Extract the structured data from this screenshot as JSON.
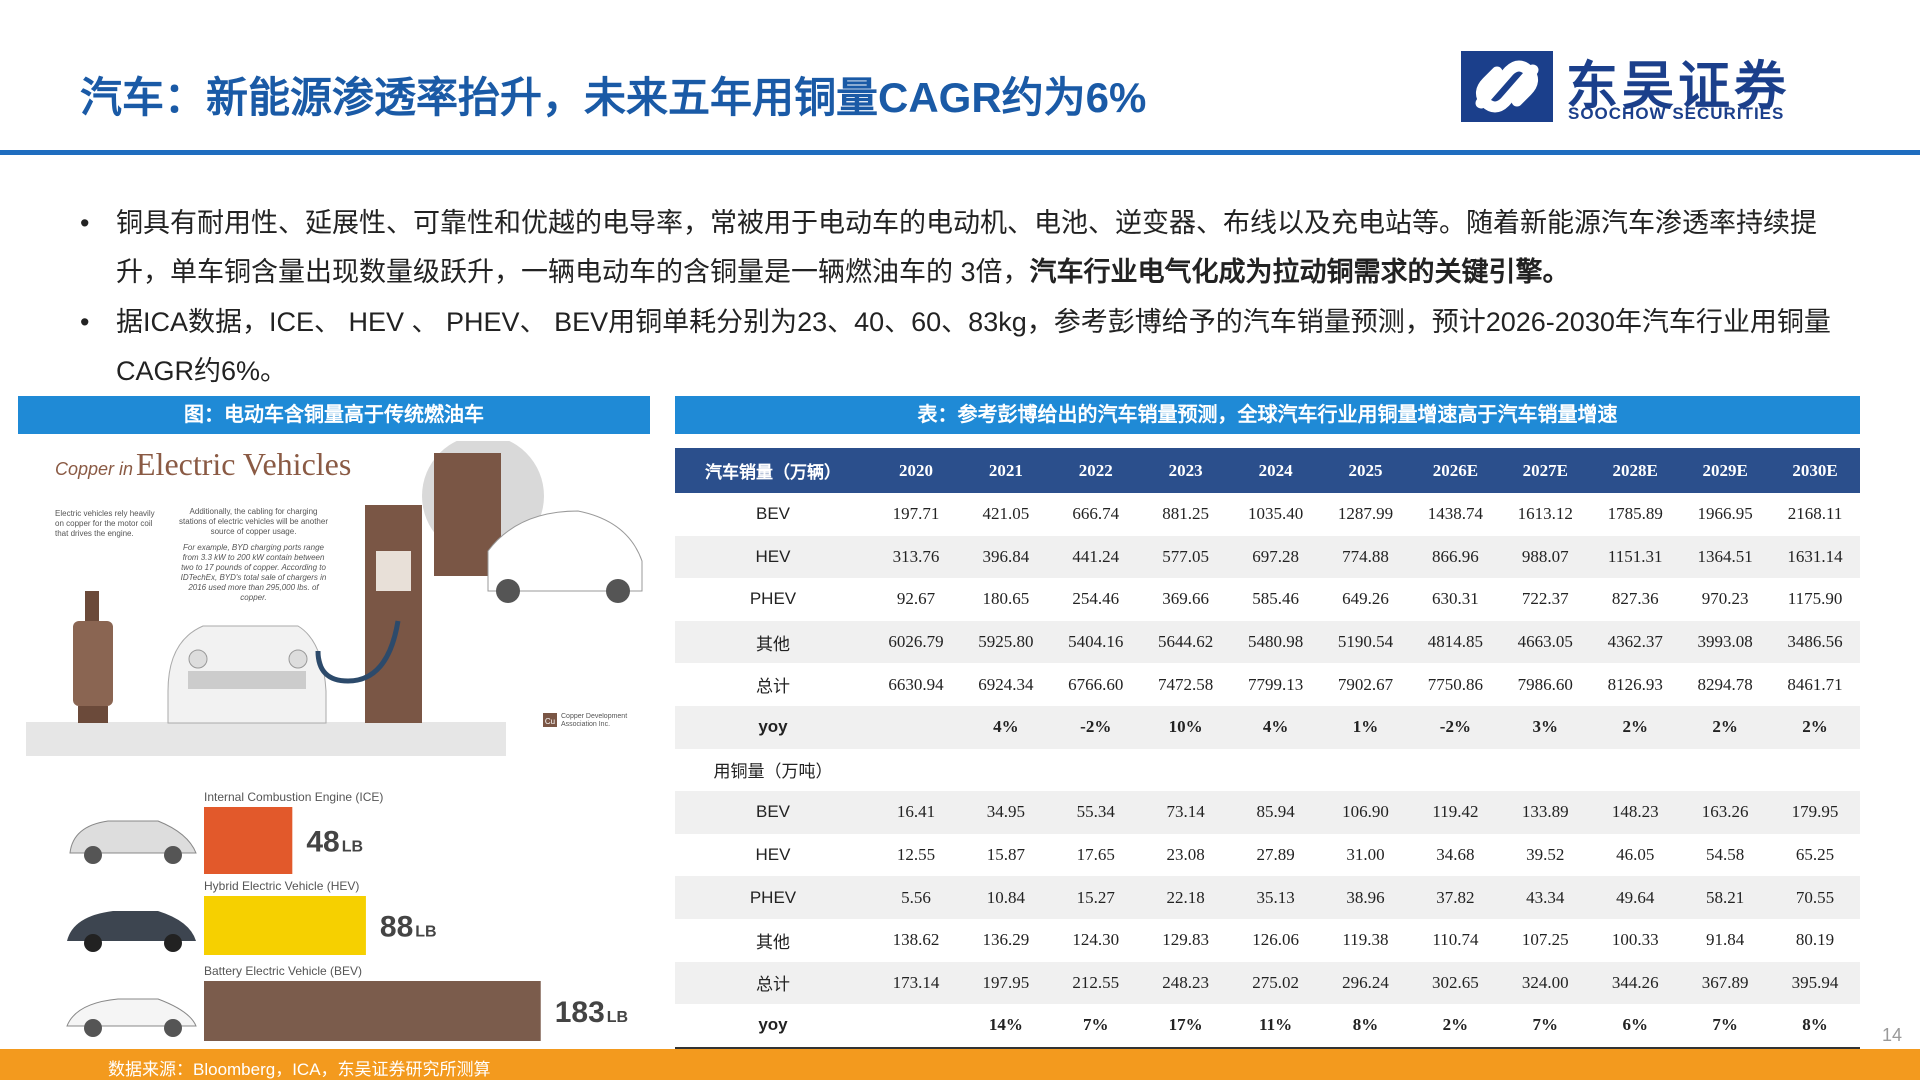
{
  "header": {
    "title": "汽车：新能源渗透率抬升，未来五年用铜量CAGR约为6%",
    "logo_cn": "东吴证券",
    "logo_en": "SOOCHOW SECURITIES"
  },
  "bullets": [
    {
      "text": "铜具有耐用性、延展性、可靠性和优越的电导率，常被用于电动车的电动机、电池、逆变器、布线以及充电站等。随着新能源汽车渗透率持续提升，单车铜含量出现数量级跃升，一辆电动车的含铜量是一辆燃油车的 3倍，",
      "bold": "汽车行业电气化成为拉动铜需求的关键引擎。"
    },
    {
      "text": "据ICA数据，ICE、 HEV 、 PHEV、 BEV用铜单耗分别为23、40、60、83kg，参考彭博给予的汽车销量预测，预计2026-2030年汽车行业用铜量CAGR约6%。"
    }
  ],
  "figure": {
    "caption": "图：电动车含铜量高于传统燃油车",
    "title_a": "Copper in",
    "title_b": "Electric Vehicles",
    "note_1": "Electric vehicles rely heavily on copper for the motor coil that drives the engine.",
    "note_2": "Additionally, the cabling for charging stations of electric vehicles will be another source of copper usage.",
    "note_3": "For example, BYD charging ports range from 3.3 kW to 200 kW contain between two to 17 pounds of copper. According to IDTechEx, BYD's total sale of chargers in 2016 used more than 295,000 lbs. of copper.",
    "cu": "Cu",
    "cda": "Copper Development Association Inc.",
    "bars": [
      {
        "label": "Internal Combustion Engine (ICE)",
        "value": 48,
        "unit": "LB",
        "color": "#e2592b"
      },
      {
        "label": "Hybrid Electric Vehicle (HEV)",
        "value": 88,
        "unit": "LB",
        "color": "#f6d000"
      },
      {
        "label": "Battery Electric Vehicle (BEV)",
        "value": 183,
        "unit": "LB",
        "color": "#7b5c4c"
      }
    ]
  },
  "table": {
    "caption": "表：参考彭博给出的汽车销量预测，全球汽车行业用铜量增速高于汽车销量增速",
    "header": [
      "汽车销量（万辆）",
      "2020",
      "2021",
      "2022",
      "2023",
      "2024",
      "2025",
      "2026E",
      "2027E",
      "2028E",
      "2029E",
      "2030E"
    ],
    "rows": [
      [
        "BEV",
        "197.71",
        "421.05",
        "666.74",
        "881.25",
        "1035.40",
        "1287.99",
        "1438.74",
        "1613.12",
        "1785.89",
        "1966.95",
        "2168.11"
      ],
      [
        "HEV",
        "313.76",
        "396.84",
        "441.24",
        "577.05",
        "697.28",
        "774.88",
        "866.96",
        "988.07",
        "1151.31",
        "1364.51",
        "1631.14"
      ],
      [
        "PHEV",
        "92.67",
        "180.65",
        "254.46",
        "369.66",
        "585.46",
        "649.26",
        "630.31",
        "722.37",
        "827.36",
        "970.23",
        "1175.90"
      ],
      [
        "其他",
        "6026.79",
        "5925.80",
        "5404.16",
        "5644.62",
        "5480.98",
        "5190.54",
        "4814.85",
        "4663.05",
        "4362.37",
        "3993.08",
        "3486.56"
      ],
      [
        "总计",
        "6630.94",
        "6924.34",
        "6766.60",
        "7472.58",
        "7799.13",
        "7902.67",
        "7750.86",
        "7986.60",
        "8126.93",
        "8294.78",
        "8461.71"
      ],
      [
        "yoy",
        null,
        "4%",
        "-2%",
        "10%",
        "4%",
        "1%",
        "-2%",
        "3%",
        "2%",
        "2%",
        "2%"
      ],
      [
        "用铜量（万吨）"
      ],
      [
        "BEV",
        "16.41",
        "34.95",
        "55.34",
        "73.14",
        "85.94",
        "106.90",
        "119.42",
        "133.89",
        "148.23",
        "163.26",
        "179.95"
      ],
      [
        "HEV",
        "12.55",
        "15.87",
        "17.65",
        "23.08",
        "27.89",
        "31.00",
        "34.68",
        "39.52",
        "46.05",
        "54.58",
        "65.25"
      ],
      [
        "PHEV",
        "5.56",
        "10.84",
        "15.27",
        "22.18",
        "35.13",
        "38.96",
        "37.82",
        "43.34",
        "49.64",
        "58.21",
        "70.55"
      ],
      [
        "其他",
        "138.62",
        "136.29",
        "124.30",
        "129.83",
        "126.06",
        "119.38",
        "110.74",
        "107.25",
        "100.33",
        "91.84",
        "80.19"
      ],
      [
        "总计",
        "173.14",
        "197.95",
        "212.55",
        "248.23",
        "275.02",
        "296.24",
        "302.65",
        "324.00",
        "344.26",
        "367.89",
        "395.94"
      ],
      [
        "yoy",
        null,
        "14%",
        "7%",
        "17%",
        "11%",
        "8%",
        "2%",
        "7%",
        "6%",
        "7%",
        "8%"
      ]
    ]
  },
  "footer": {
    "source": "数据来源：Bloomberg，ICA，东吴证券研究所测算",
    "page": "14"
  }
}
